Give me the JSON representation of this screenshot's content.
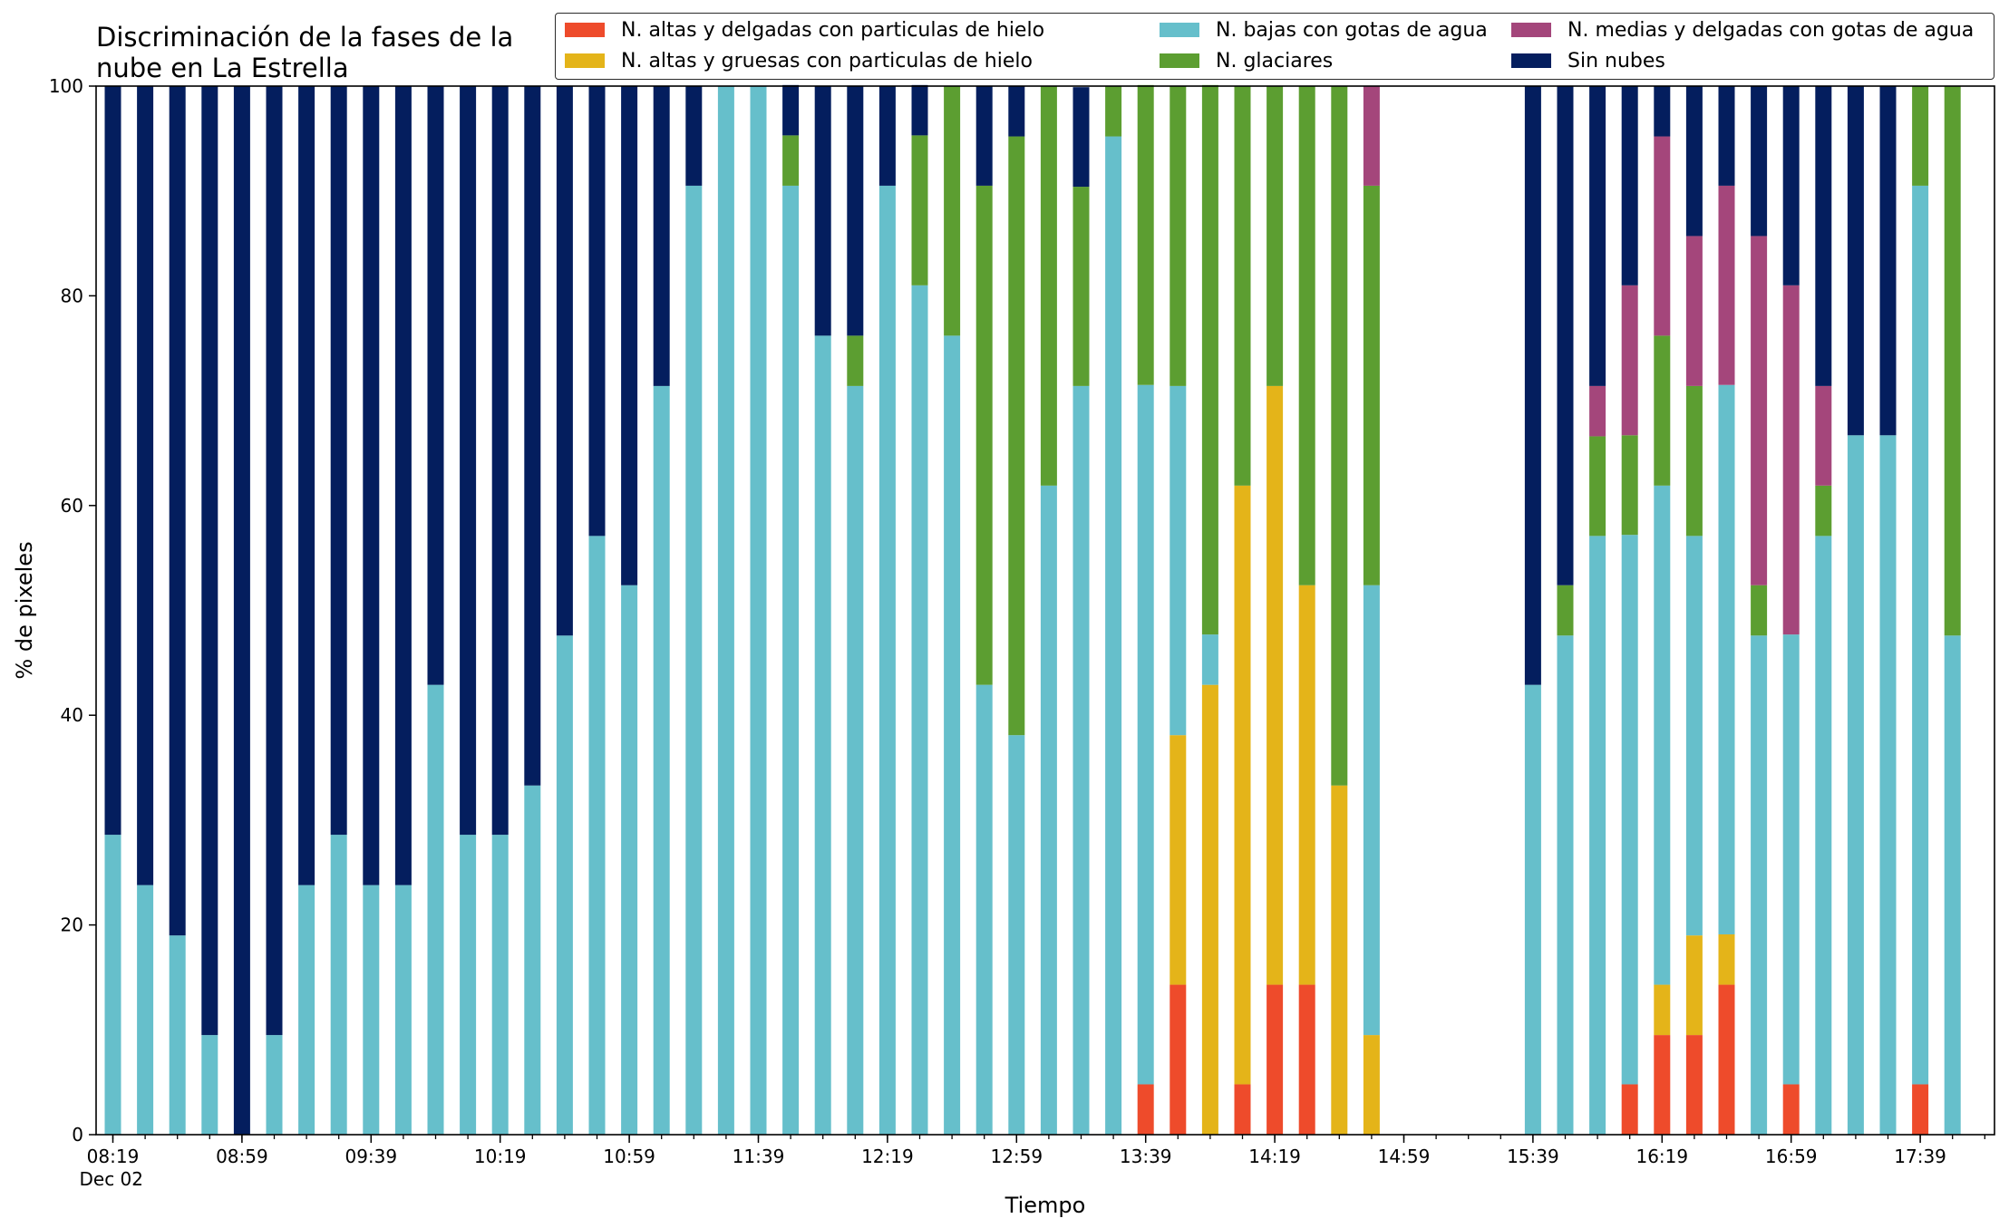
{
  "chart_data": {
    "type": "bar",
    "stacked": true,
    "title": "Discriminación de la fases de la nube en La Estrella",
    "xlabel": "Tiempo",
    "ylabel": "% de pixeles",
    "ylim": [
      0,
      100
    ],
    "yticks": [
      "0",
      "20",
      "40",
      "60",
      "80",
      "100"
    ],
    "xtick_labels": [
      "08:19",
      "08:59",
      "09:39",
      "10:19",
      "10:59",
      "11:39",
      "12:19",
      "12:59",
      "13:39",
      "14:19",
      "14:59",
      "15:39",
      "16:19",
      "16:59",
      "17:39"
    ],
    "xtick_label_second_line": "Dec 02",
    "interval_minutes": 10,
    "x": [
      "08:19",
      "08:29",
      "08:39",
      "08:49",
      "08:59",
      "09:09",
      "09:19",
      "09:29",
      "09:39",
      "09:49",
      "09:59",
      "10:09",
      "10:19",
      "10:29",
      "10:39",
      "10:49",
      "10:59",
      "11:09",
      "11:19",
      "11:29",
      "11:39",
      "11:49",
      "11:59",
      "12:09",
      "12:19",
      "12:29",
      "12:39",
      "12:49",
      "12:59",
      "13:09",
      "13:19",
      "13:29",
      "13:39",
      "13:49",
      "13:59",
      "14:09",
      "14:19",
      "14:29",
      "14:39",
      "14:49",
      "14:59",
      "15:09",
      "15:19",
      "15:29",
      "15:39",
      "15:49",
      "15:59",
      "16:09",
      "16:19",
      "16:29",
      "16:39",
      "16:49",
      "16:59",
      "17:09",
      "17:19",
      "17:29",
      "17:39",
      "17:49"
    ],
    "legend_position": "top",
    "series": [
      {
        "name": "N. altas y delgadas con particulas de hielo",
        "color": "#ee4b2b",
        "values": [
          0,
          0,
          0,
          0,
          0,
          0,
          0,
          0,
          0,
          0,
          0,
          0,
          0,
          0,
          0,
          0,
          0,
          0,
          0,
          0,
          0,
          0,
          0,
          0,
          0,
          0,
          0,
          0,
          0,
          0,
          0,
          0,
          4.8,
          14.3,
          0,
          4.8,
          14.3,
          14.3,
          0,
          0,
          0,
          0,
          0,
          0,
          0,
          0,
          0,
          4.8,
          9.5,
          9.5,
          14.3,
          0,
          4.8,
          0,
          0,
          0,
          4.8,
          0
        ]
      },
      {
        "name": "N. altas y gruesas con particulas de hielo",
        "color": "#e4b419",
        "values": [
          0,
          0,
          0,
          0,
          0,
          0,
          0,
          0,
          0,
          0,
          0,
          0,
          0,
          0,
          0,
          0,
          0,
          0,
          0,
          0,
          0,
          0,
          0,
          0,
          0,
          0,
          0,
          0,
          0,
          0,
          0,
          0,
          0,
          23.8,
          42.9,
          57.1,
          57.1,
          38.1,
          33.3,
          9.5,
          0,
          0,
          0,
          0,
          0,
          0,
          0,
          0,
          4.8,
          9.5,
          4.8,
          0,
          0,
          0,
          0,
          0,
          0,
          0
        ]
      },
      {
        "name": "N. bajas con gotas de agua",
        "color": "#66bfcb",
        "values": [
          28.6,
          23.8,
          19,
          9.5,
          0,
          9.5,
          23.8,
          28.6,
          23.8,
          23.8,
          42.9,
          28.6,
          28.6,
          33.3,
          47.6,
          57.1,
          52.4,
          71.4,
          90.5,
          100,
          100,
          90.5,
          76.2,
          71.4,
          90.5,
          81,
          76.2,
          42.9,
          38.1,
          61.9,
          71.4,
          95.2,
          66.7,
          33.3,
          4.8,
          0,
          0,
          0,
          0,
          42.9,
          0,
          0,
          0,
          0,
          42.9,
          47.6,
          57.1,
          52.4,
          47.6,
          38.1,
          52.4,
          47.6,
          42.9,
          57.1,
          66.7,
          66.7,
          85.7,
          47.6
        ]
      },
      {
        "name": "N. glaciares",
        "color": "#5c9e31",
        "values": [
          0,
          0,
          0,
          0,
          0,
          0,
          0,
          0,
          0,
          0,
          0,
          0,
          0,
          0,
          0,
          0,
          0,
          0,
          0,
          0,
          0,
          4.8,
          0,
          4.8,
          0,
          14.3,
          23.8,
          47.6,
          57.1,
          38.1,
          19,
          4.8,
          28.6,
          28.6,
          52.4,
          38.1,
          28.6,
          47.6,
          66.7,
          38.1,
          0,
          0,
          0,
          0,
          0,
          4.8,
          9.5,
          9.5,
          14.3,
          14.3,
          0,
          4.8,
          0,
          4.8,
          0,
          0,
          9.5,
          52.4
        ]
      },
      {
        "name": "N. medias y delgadas con gotas de agua",
        "color": "#a4467b",
        "values": [
          0,
          0,
          0,
          0,
          0,
          0,
          0,
          0,
          0,
          0,
          0,
          0,
          0,
          0,
          0,
          0,
          0,
          0,
          0,
          0,
          0,
          0,
          0,
          0,
          0,
          0,
          0,
          0,
          0,
          0,
          0,
          0,
          0,
          0,
          0,
          0,
          0,
          0,
          0,
          9.5,
          0,
          0,
          0,
          0,
          0,
          0,
          4.8,
          14.3,
          19,
          14.3,
          19,
          33.3,
          33.3,
          9.5,
          0,
          0,
          0,
          0
        ]
      },
      {
        "name": "Sin nubes",
        "color": "#041e5e",
        "values": [
          71.4,
          76.2,
          81,
          90.5,
          100,
          90.5,
          76.2,
          71.4,
          76.2,
          76.2,
          57.1,
          71.4,
          71.4,
          66.7,
          52.4,
          42.9,
          47.6,
          28.6,
          9.5,
          0,
          0,
          4.8,
          23.8,
          23.8,
          9.5,
          4.8,
          0,
          9.5,
          4.8,
          0,
          9.5,
          0,
          0,
          0,
          0,
          0,
          0,
          0,
          0,
          0,
          0,
          0,
          0,
          0,
          57.1,
          47.6,
          28.6,
          19,
          4.8,
          14.3,
          9.5,
          14.3,
          19,
          28.6,
          33.3,
          33.3,
          0,
          0
        ]
      }
    ]
  }
}
